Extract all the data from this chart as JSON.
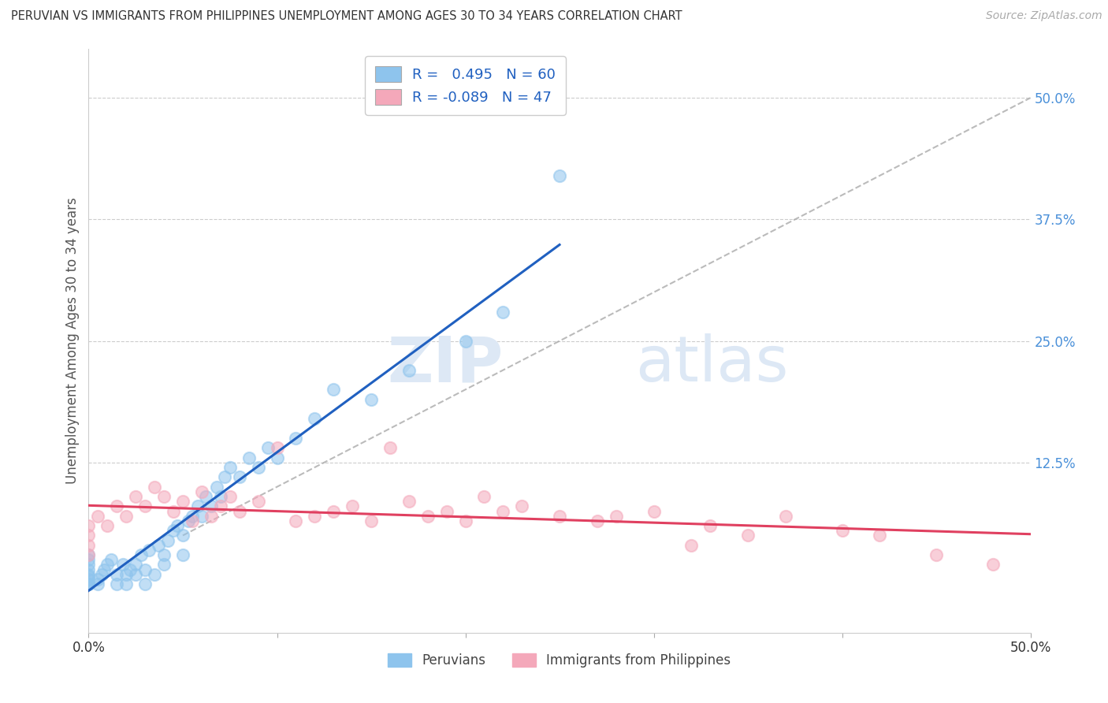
{
  "title": "PERUVIAN VS IMMIGRANTS FROM PHILIPPINES UNEMPLOYMENT AMONG AGES 30 TO 34 YEARS CORRELATION CHART",
  "source": "Source: ZipAtlas.com",
  "ylabel": "Unemployment Among Ages 30 to 34 years",
  "xlim": [
    0.0,
    0.5
  ],
  "ylim": [
    -0.05,
    0.55
  ],
  "yticks_right": [
    0.125,
    0.25,
    0.375,
    0.5
  ],
  "ytick_labels_right": [
    "12.5%",
    "25.0%",
    "37.5%",
    "50.0%"
  ],
  "peruvian_R": 0.495,
  "peruvian_N": 60,
  "philippines_R": -0.089,
  "philippines_N": 47,
  "peruvian_color": "#8EC4ED",
  "philippines_color": "#F4A8BA",
  "peruvian_line_color": "#2060C0",
  "philippines_line_color": "#E04060",
  "ref_line_color": "#AAAAAA",
  "background_color": "#FFFFFF",
  "watermark_zip": "ZIP",
  "watermark_atlas": "atlas",
  "legend_R_color": "#2060C0",
  "peruvian_x": [
    0.0,
    0.0,
    0.0,
    0.0,
    0.0,
    0.0,
    0.0,
    0.0,
    0.0,
    0.0,
    0.005,
    0.005,
    0.007,
    0.008,
    0.01,
    0.012,
    0.015,
    0.015,
    0.018,
    0.02,
    0.02,
    0.022,
    0.025,
    0.025,
    0.028,
    0.03,
    0.03,
    0.032,
    0.035,
    0.037,
    0.04,
    0.04,
    0.042,
    0.045,
    0.047,
    0.05,
    0.05,
    0.053,
    0.055,
    0.058,
    0.06,
    0.062,
    0.065,
    0.068,
    0.07,
    0.072,
    0.075,
    0.08,
    0.085,
    0.09,
    0.095,
    0.1,
    0.11,
    0.12,
    0.13,
    0.15,
    0.17,
    0.2,
    0.22,
    0.25
  ],
  "peruvian_y": [
    0.0,
    0.0,
    0.0,
    0.005,
    0.008,
    0.01,
    0.015,
    0.02,
    0.025,
    0.03,
    0.0,
    0.005,
    0.01,
    0.015,
    0.02,
    0.025,
    0.0,
    0.01,
    0.02,
    0.0,
    0.01,
    0.015,
    0.01,
    0.02,
    0.03,
    0.0,
    0.015,
    0.035,
    0.01,
    0.04,
    0.02,
    0.03,
    0.045,
    0.055,
    0.06,
    0.03,
    0.05,
    0.065,
    0.07,
    0.08,
    0.07,
    0.09,
    0.08,
    0.1,
    0.09,
    0.11,
    0.12,
    0.11,
    0.13,
    0.12,
    0.14,
    0.13,
    0.15,
    0.17,
    0.2,
    0.19,
    0.22,
    0.25,
    0.28,
    0.42
  ],
  "philippines_x": [
    0.0,
    0.0,
    0.0,
    0.0,
    0.005,
    0.01,
    0.015,
    0.02,
    0.025,
    0.03,
    0.035,
    0.04,
    0.045,
    0.05,
    0.055,
    0.06,
    0.065,
    0.07,
    0.075,
    0.08,
    0.09,
    0.1,
    0.11,
    0.12,
    0.13,
    0.14,
    0.15,
    0.16,
    0.17,
    0.18,
    0.19,
    0.2,
    0.21,
    0.22,
    0.23,
    0.25,
    0.27,
    0.28,
    0.3,
    0.32,
    0.33,
    0.35,
    0.37,
    0.4,
    0.42,
    0.45,
    0.48
  ],
  "philippines_y": [
    0.06,
    0.05,
    0.04,
    0.03,
    0.07,
    0.06,
    0.08,
    0.07,
    0.09,
    0.08,
    0.1,
    0.09,
    0.075,
    0.085,
    0.065,
    0.095,
    0.07,
    0.08,
    0.09,
    0.075,
    0.085,
    0.14,
    0.065,
    0.07,
    0.075,
    0.08,
    0.065,
    0.14,
    0.085,
    0.07,
    0.075,
    0.065,
    0.09,
    0.075,
    0.08,
    0.07,
    0.065,
    0.07,
    0.075,
    0.04,
    0.06,
    0.05,
    0.07,
    0.055,
    0.05,
    0.03,
    0.02
  ]
}
